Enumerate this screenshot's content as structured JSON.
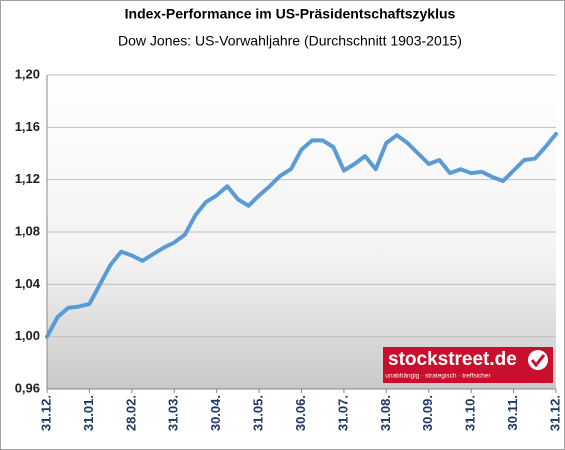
{
  "chart_data": {
    "type": "line",
    "title": "Index-Performance im US-Präsidentschaftszyklus",
    "subtitle": "Dow Jones: US-Vorwahljahre  (Durchschnitt 1903-2015)",
    "watermark": "stockstreet.de",
    "watermark_tagline": "unabhängig · strategisch · treffsicher",
    "categories": [
      "31.12.",
      null,
      null,
      null,
      "31.01.",
      null,
      null,
      null,
      "28.02.",
      null,
      null,
      null,
      "31.03.",
      null,
      null,
      null,
      "30.04.",
      null,
      null,
      null,
      "31.05.",
      null,
      null,
      null,
      "30.06.",
      null,
      null,
      null,
      "31.07.",
      null,
      null,
      null,
      "31.08.",
      null,
      null,
      null,
      "30.09.",
      null,
      null,
      null,
      "31.10.",
      null,
      null,
      null,
      "30.11.",
      null,
      null,
      null,
      "31.12."
    ],
    "series": [
      {
        "name": "Dow Jones",
        "color": "#5b9bd5",
        "values": [
          1.0,
          1.015,
          1.022,
          1.023,
          1.025,
          1.04,
          1.055,
          1.065,
          1.062,
          1.058,
          1.063,
          1.068,
          1.072,
          1.078,
          1.093,
          1.103,
          1.108,
          1.115,
          1.105,
          1.1,
          1.108,
          1.115,
          1.123,
          1.128,
          1.143,
          1.15,
          1.15,
          1.145,
          1.127,
          1.132,
          1.138,
          1.128,
          1.148,
          1.154,
          1.148,
          1.14,
          1.132,
          1.135,
          1.125,
          1.128,
          1.125,
          1.126,
          1.122,
          1.119,
          1.127,
          1.135,
          1.136,
          1.145,
          1.155
        ]
      }
    ],
    "ylim": [
      0.96,
      1.2
    ],
    "yticks": [
      {
        "value": 0.96,
        "label": "0,96"
      },
      {
        "value": 1.0,
        "label": "1,00"
      },
      {
        "value": 1.04,
        "label": "1,04"
      },
      {
        "value": 1.08,
        "label": "1,08"
      },
      {
        "value": 1.12,
        "label": "1,12"
      },
      {
        "value": 1.16,
        "label": "1,16"
      },
      {
        "value": 1.2,
        "label": "1,20"
      }
    ],
    "grid": true
  }
}
